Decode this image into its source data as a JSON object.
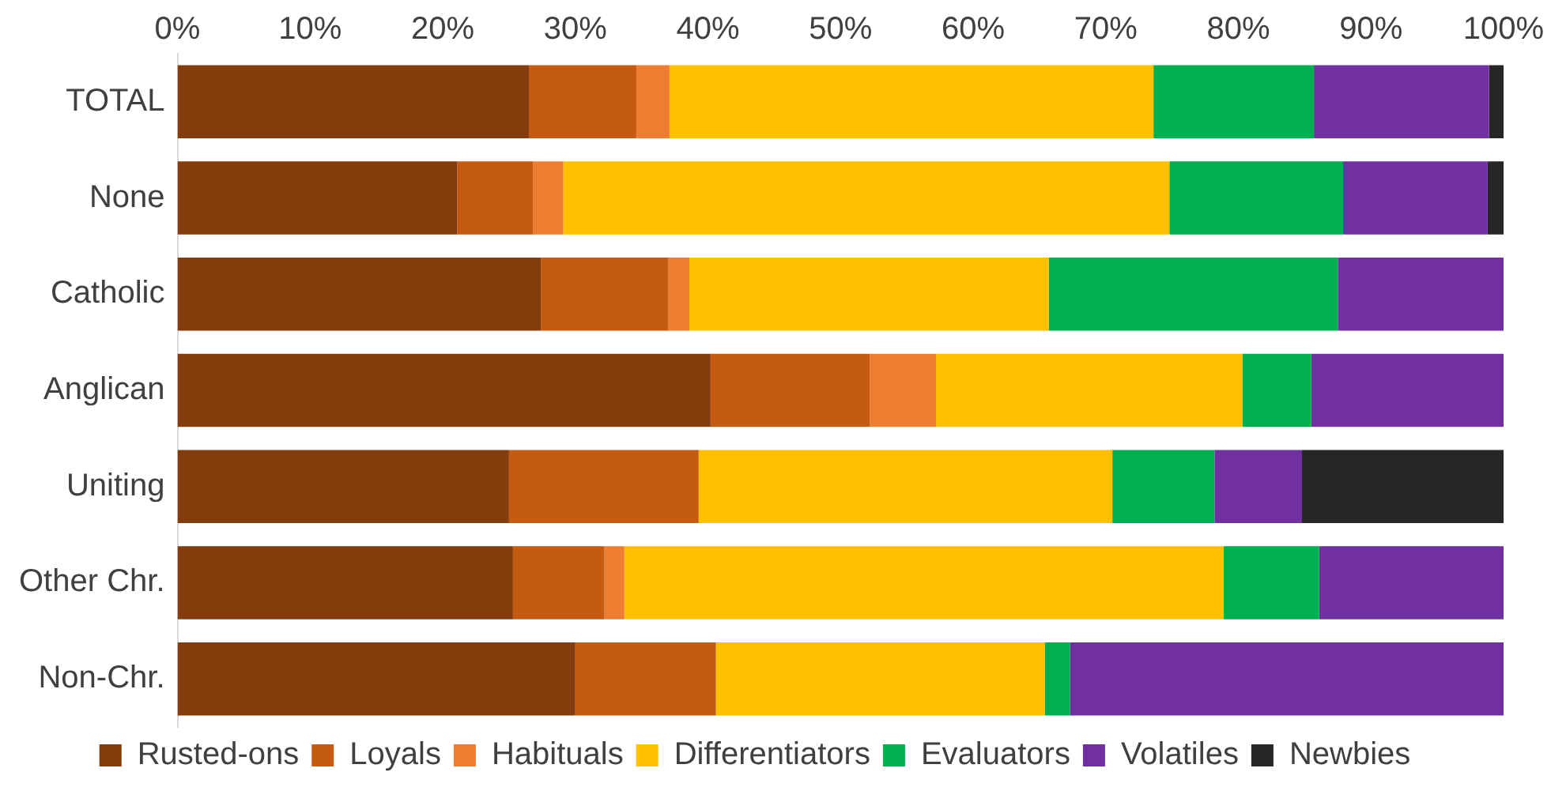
{
  "chart_data": {
    "type": "bar",
    "orientation": "horizontal",
    "stacked": true,
    "categories": [
      "TOTAL",
      "None",
      "Catholic",
      "Anglican",
      "Uniting",
      "Other Chr.",
      "Non-Chr."
    ],
    "series": [
      {
        "name": "Rusted-ons",
        "color": "#843c0c",
        "values": [
          26.5,
          21.1,
          27.4,
          40.2,
          25.0,
          25.3,
          30.0
        ]
      },
      {
        "name": "Loyals",
        "color": "#c55a11",
        "values": [
          8.1,
          5.7,
          9.6,
          12.0,
          14.3,
          6.9,
          10.6
        ]
      },
      {
        "name": "Habituals",
        "color": "#ed7d31",
        "values": [
          2.5,
          2.3,
          1.6,
          5.0,
          0,
          1.5,
          0
        ]
      },
      {
        "name": "Differentiators",
        "color": "#ffc000",
        "values": [
          36.5,
          45.7,
          27.1,
          23.1,
          31.2,
          45.2,
          24.8
        ]
      },
      {
        "name": "Evaluators",
        "color": "#00b050",
        "values": [
          12.1,
          13.1,
          21.8,
          5.2,
          7.7,
          7.2,
          1.9
        ]
      },
      {
        "name": "Volatiles",
        "color": "#7030a0",
        "values": [
          13.2,
          10.9,
          12.5,
          14.5,
          6.6,
          13.9,
          32.7
        ]
      },
      {
        "name": "Newbies",
        "color": "#262626",
        "values": [
          1.1,
          1.2,
          0,
          0,
          15.2,
          0,
          0
        ]
      }
    ],
    "xlim": [
      0,
      100
    ],
    "xticks": [
      {
        "value": 0,
        "label": "0%"
      },
      {
        "value": 10,
        "label": "10%"
      },
      {
        "value": 20,
        "label": "20%"
      },
      {
        "value": 30,
        "label": "30%"
      },
      {
        "value": 40,
        "label": "40%"
      },
      {
        "value": 50,
        "label": "50%"
      },
      {
        "value": 60,
        "label": "60%"
      },
      {
        "value": 70,
        "label": "70%"
      },
      {
        "value": 80,
        "label": "80%"
      },
      {
        "value": 90,
        "label": "90%"
      },
      {
        "value": 100,
        "label": "100%"
      }
    ],
    "grid": false,
    "legend": "bottom"
  }
}
